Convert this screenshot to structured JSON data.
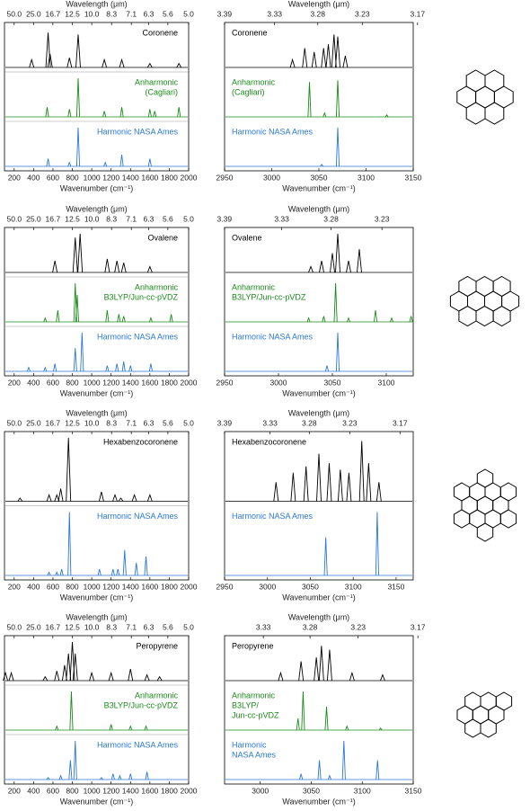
{
  "chart_data": [
    {
      "type": "spectrum",
      "xlabel": "Wavenumber (cm⁻¹)",
      "x2label": "Wavelength (μm)",
      "xlim": [
        100,
        2000
      ],
      "xticks": [
        200,
        400,
        600,
        800,
        1000,
        1200,
        1400,
        1600,
        1800,
        2000
      ],
      "x2ticks": [
        {
          "value": 50,
          "label": "50.0"
        },
        {
          "value": 25,
          "label": "25.0"
        },
        16.7,
        12.5,
        {
          "value": 10,
          "label": "10.0"
        },
        8.3,
        7.1,
        6.3,
        5.6,
        {
          "value": 5,
          "label": "5.0"
        }
      ],
      "series": [
        {
          "name": [
            "Coronene"
          ],
          "color": "#000000",
          "x": [
            380,
            550,
            570,
            770,
            860,
            1130,
            1310,
            1600,
            1900
          ],
          "values": [
            0.2,
            0.9,
            0.35,
            0.25,
            0.85,
            0.2,
            0.2,
            0.1,
            0.1
          ]
        },
        {
          "name": [
            "Anharmonic",
            "(Cagliari)"
          ],
          "color": "#1a8a1a",
          "x": [
            540,
            770,
            860,
            1130,
            1310,
            1600,
            1650,
            1900
          ],
          "values": [
            0.25,
            0.2,
            1.0,
            0.15,
            0.25,
            0.2,
            0.15,
            0.25
          ]
        },
        {
          "name": [
            "Harmonic NASA Ames"
          ],
          "color": "#2a78d6",
          "x": [
            550,
            770,
            860,
            1140,
            1310,
            1600
          ],
          "values": [
            0.2,
            0.1,
            1.0,
            0.1,
            0.3,
            0.2
          ]
        }
      ]
    },
    {
      "type": "spectrum",
      "xlabel": "Wavenumber (cm⁻¹)",
      "x2label": "Wavelength (μm)",
      "xlim": [
        2950,
        3150
      ],
      "xticks": [
        2950,
        3000,
        3050,
        3100,
        3150
      ],
      "x2ticks": [
        3.39,
        3.33,
        3.28,
        3.23,
        3.17
      ],
      "series": [
        {
          "name": [
            "Coronene"
          ],
          "color": "#000000",
          "x": [
            3022,
            3035,
            3045,
            3055,
            3060,
            3066,
            3070,
            3078
          ],
          "values": [
            0.2,
            0.5,
            0.4,
            0.5,
            0.6,
            0.85,
            0.8,
            0.3
          ]
        },
        {
          "name": [
            "Anharmonic",
            "(Cagliari)"
          ],
          "color": "#1a8a1a",
          "x": [
            3040,
            3056,
            3070,
            3122
          ],
          "values": [
            0.9,
            0.1,
            0.95,
            0.05
          ]
        },
        {
          "name": [
            "Harmonic NASA Ames"
          ],
          "color": "#2a78d6",
          "x": [
            3053,
            3070
          ],
          "values": [
            0.05,
            1.0
          ]
        }
      ]
    },
    {
      "type": "spectrum",
      "xlabel": "Wavenumber (cm⁻¹)",
      "x2label": "Wavelength (μm)",
      "xlim": [
        100,
        2000
      ],
      "xticks": [
        200,
        400,
        600,
        800,
        1000,
        1200,
        1400,
        1600,
        1800,
        2000
      ],
      "x2ticks": [
        {
          "value": 50,
          "label": "50.0"
        },
        {
          "value": 25,
          "label": "25.0"
        },
        16.7,
        12.5,
        {
          "value": 10,
          "label": "10.0"
        },
        8.3,
        7.1,
        6.3,
        5.6,
        {
          "value": 5,
          "label": "5.0"
        }
      ],
      "series": [
        {
          "name": [
            "Ovalene"
          ],
          "color": "#000000",
          "x": [
            620,
            830,
            880,
            1160,
            1260,
            1330,
            1600
          ],
          "values": [
            0.3,
            0.9,
            1.0,
            0.35,
            0.3,
            0.25,
            0.15
          ]
        },
        {
          "name": [
            "Anharmonic",
            "B3LYP/Jun-cc-pVDZ"
          ],
          "color": "#1a8a1a",
          "x": [
            520,
            650,
            830,
            850,
            1160,
            1280,
            1330,
            1610,
            1820
          ],
          "values": [
            0.1,
            0.3,
            1.0,
            0.7,
            0.3,
            0.2,
            0.15,
            0.1,
            0.2
          ]
        },
        {
          "name": [
            "Harmonic NASA Ames"
          ],
          "color": "#2a78d6",
          "x": [
            350,
            520,
            620,
            830,
            900,
            1160,
            1260,
            1330,
            1400,
            1610
          ],
          "values": [
            0.1,
            0.1,
            0.2,
            0.6,
            1.0,
            0.15,
            0.2,
            0.25,
            0.15,
            0.2
          ]
        }
      ]
    },
    {
      "type": "spectrum",
      "xlabel": "Wavenumber (cm⁻¹)",
      "x2label": "Wavelength (μm)",
      "xlim": [
        2950,
        3125
      ],
      "xticks": [
        2950,
        3000,
        3050,
        3100
      ],
      "x2ticks": [
        3.39,
        3.33,
        3.28,
        3.23
      ],
      "series": [
        {
          "name": [
            "Ovalene"
          ],
          "color": "#000000",
          "x": [
            3030,
            3040,
            3050,
            3055,
            3065,
            3075
          ],
          "values": [
            0.15,
            0.3,
            0.5,
            1.0,
            0.3,
            0.6
          ]
        },
        {
          "name": [
            "Anharmonic",
            "B3LYP/Jun-cc-pVDZ"
          ],
          "color": "#1a8a1a",
          "x": [
            3028,
            3042,
            3053,
            3065,
            3090,
            3105,
            3123
          ],
          "values": [
            0.1,
            0.15,
            1.0,
            0.1,
            0.3,
            0.1,
            0.15
          ]
        },
        {
          "name": [
            "Harmonic NASA Ames"
          ],
          "color": "#2a78d6",
          "x": [
            3045,
            3055
          ],
          "values": [
            0.15,
            1.0
          ]
        }
      ]
    },
    {
      "type": "spectrum",
      "xlabel": "Wavenumber (cm⁻¹)",
      "x2label": "Wavelength (μm)",
      "xlim": [
        100,
        2000
      ],
      "xticks": [
        200,
        400,
        600,
        800,
        1000,
        1200,
        1400,
        1600,
        1800,
        2000
      ],
      "x2ticks": [
        {
          "value": 50,
          "label": "50.0"
        },
        {
          "value": 25,
          "label": "25.0"
        },
        16.7,
        12.5,
        {
          "value": 10,
          "label": "10.0"
        },
        8.3,
        7.1,
        6.3,
        5.6,
        {
          "value": 5,
          "label": "5.0"
        }
      ],
      "series": [
        {
          "name": [
            "Hexabenzocoronene"
          ],
          "color": "#000000",
          "x": [
            260,
            560,
            640,
            680,
            760,
            1100,
            1240,
            1300,
            1440,
            1600
          ],
          "values": [
            0.05,
            0.1,
            0.1,
            0.2,
            1.0,
            0.15,
            0.1,
            0.05,
            0.1,
            0.1
          ]
        },
        {
          "name": [
            "Harmonic NASA Ames"
          ],
          "color": "#2a78d6",
          "x": [
            560,
            640,
            690,
            770,
            1080,
            1220,
            1270,
            1340,
            1460,
            1560
          ],
          "values": [
            0.05,
            0.05,
            0.1,
            1.0,
            0.1,
            0.1,
            0.1,
            0.4,
            0.2,
            0.3
          ]
        }
      ]
    },
    {
      "type": "spectrum",
      "xlabel": "Wavenumber (cm⁻¹)",
      "x2label": "Wavelength (μm)",
      "xlim": [
        2950,
        3170
      ],
      "xticks": [
        2950,
        3000,
        3050,
        3100,
        3150
      ],
      "x2ticks": [
        3.39,
        3.33,
        3.28,
        3.23,
        3.17
      ],
      "series": [
        {
          "name": [
            "Hexabenzocoronene"
          ],
          "color": "#000000",
          "x": [
            3010,
            3030,
            3045,
            3060,
            3072,
            3085,
            3095,
            3110,
            3118,
            3130
          ],
          "values": [
            0.3,
            0.45,
            0.55,
            0.75,
            0.6,
            0.5,
            0.45,
            0.95,
            0.6,
            0.3
          ]
        },
        {
          "name": [
            "Harmonic NASA Ames"
          ],
          "color": "#2a78d6",
          "x": [
            3068,
            3128
          ],
          "values": [
            0.6,
            1.0
          ]
        }
      ]
    },
    {
      "type": "spectrum",
      "xlabel": "Wavenumber (cm⁻¹)",
      "x2label": "Wavelength (μm)",
      "xlim": [
        100,
        2000
      ],
      "xticks": [
        200,
        400,
        600,
        800,
        1000,
        1200,
        1400,
        1600,
        1800,
        2000
      ],
      "x2ticks": [
        {
          "value": 50,
          "label": "50.0"
        },
        {
          "value": 25,
          "label": "25.0"
        },
        16.7,
        12.5,
        {
          "value": 10,
          "label": "10.0"
        },
        8.3,
        7.1,
        6.3,
        5.6,
        {
          "value": 5,
          "label": "5.0"
        }
      ],
      "series": [
        {
          "name": [
            "Peropyrene"
          ],
          "color": "#000000",
          "x": [
            110,
            170,
            520,
            640,
            720,
            760,
            800,
            830,
            1000,
            1200,
            1400,
            1570,
            1700
          ],
          "values": [
            0.2,
            0.2,
            0.1,
            0.25,
            0.4,
            0.7,
            1.0,
            0.7,
            0.2,
            0.2,
            0.3,
            0.15,
            0.1
          ]
        },
        {
          "name": [
            "Anharmonic",
            "B3LYP/Jun-cc-pVDZ"
          ],
          "color": "#1a8a1a",
          "x": [
            640,
            790,
            1200,
            1400,
            1560
          ],
          "values": [
            0.1,
            1.0,
            0.15,
            0.1,
            0.1
          ]
        },
        {
          "name": [
            "Harmonic NASA Ames"
          ],
          "color": "#2a78d6",
          "x": [
            550,
            680,
            780,
            830,
            1100,
            1220,
            1290,
            1400,
            1570
          ],
          "values": [
            0.05,
            0.1,
            0.5,
            1.0,
            0.05,
            0.15,
            0.1,
            0.15,
            0.2
          ]
        }
      ]
    },
    {
      "type": "spectrum",
      "xlabel": "Wavenumber (cm⁻¹)",
      "x2label": "Wavelength (μm)",
      "xlim": [
        2965,
        3150
      ],
      "xticks": [
        3000,
        3050,
        3100,
        3150
      ],
      "x2ticks": [
        3.33,
        3.28,
        3.23,
        3.17
      ],
      "series": [
        {
          "name": [
            "Peropyrene"
          ],
          "color": "#000000",
          "x": [
            3020,
            3040,
            3055,
            3060,
            3068,
            3090,
            3120
          ],
          "values": [
            0.2,
            0.5,
            0.6,
            0.9,
            0.8,
            0.2,
            0.15
          ]
        },
        {
          "name": [
            "Anharmonic",
            "B3LYP/",
            "Jun-cc-pVDZ"
          ],
          "color": "#1a8a1a",
          "x": [
            3037,
            3042,
            3065,
            3085,
            3118
          ],
          "values": [
            0.3,
            1.0,
            0.6,
            0.1,
            0.05
          ]
        },
        {
          "name": [
            "Harmonic",
            "NASA Ames"
          ],
          "color": "#2a78d6",
          "x": [
            3040,
            3058,
            3068,
            3082,
            3115
          ],
          "values": [
            0.15,
            0.5,
            0.1,
            1.0,
            0.5
          ]
        }
      ]
    }
  ]
}
